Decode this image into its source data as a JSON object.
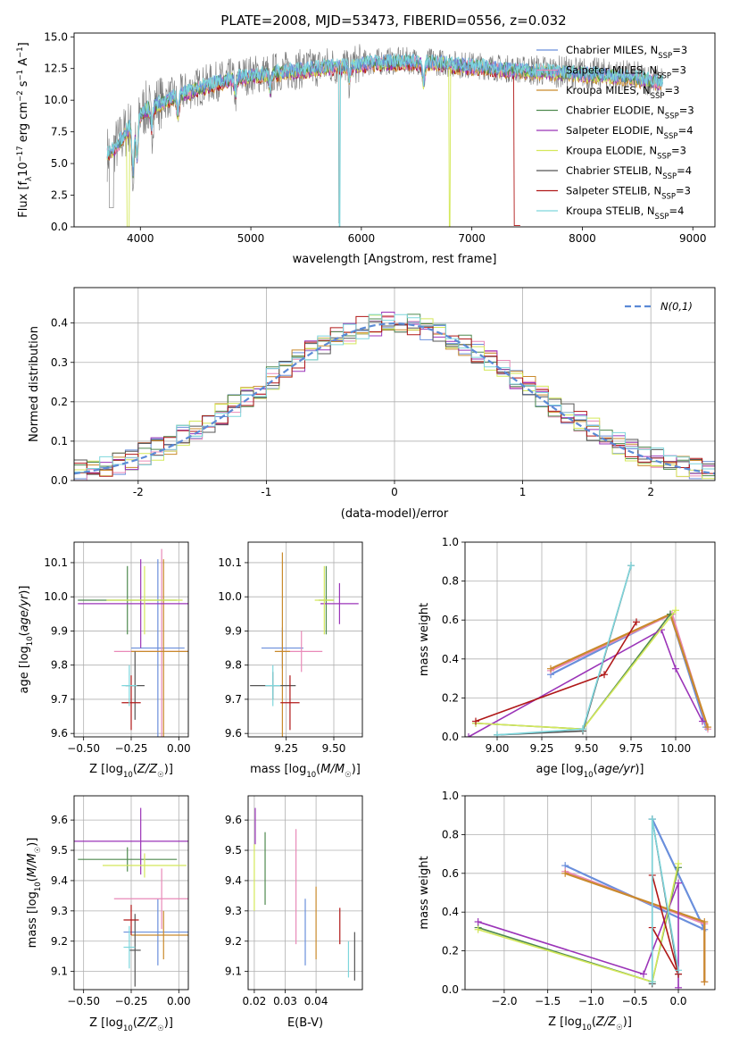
{
  "title": "PLATE=2008, MJD=53473, FIBERID=0556, z=0.032",
  "series_colors": [
    "#6a8fdc",
    "#e98ab8",
    "#c98a2c",
    "#4f8a4f",
    "#9b34b8",
    "#d4e85a",
    "#555555",
    "#b01818",
    "#7ed6dc"
  ],
  "chart_data": [
    {
      "type": "line",
      "id": "spectrum",
      "xlabel": "wavelength [Angstrom, rest frame]",
      "ylabel": "Flux [f_λ 10^-17 erg cm^-2 s^-1 A^-1]",
      "xlim": [
        3400,
        9200
      ],
      "ylim": [
        0,
        15.3
      ],
      "xticks": [
        4000,
        5000,
        6000,
        7000,
        8000,
        9000
      ],
      "yticks": [
        0.0,
        2.5,
        5.0,
        7.5,
        10.0,
        12.5,
        15.0
      ],
      "grid": false,
      "legend_position": "right",
      "envelope": {
        "x": [
          3700,
          3800,
          3900,
          4000,
          4100,
          4300,
          4500,
          4700,
          4900,
          5100,
          5300,
          5500,
          5700,
          5900,
          6100,
          6300,
          6500,
          6700,
          6900,
          7100,
          7300,
          7500,
          7700,
          7900,
          8100,
          8300,
          8500,
          8700
        ],
        "y": [
          5.8,
          6.6,
          8.0,
          9.0,
          9.6,
          10.3,
          11.0,
          11.5,
          11.9,
          12.1,
          12.3,
          12.5,
          12.7,
          12.8,
          13.0,
          13.1,
          13.1,
          13.0,
          12.8,
          12.7,
          12.5,
          12.4,
          12.3,
          12.2,
          12.1,
          12.0,
          11.8,
          11.5
        ]
      },
      "series": [
        {
          "name": "Chabrier MILES",
          "nssp": "3"
        },
        {
          "name": "Salpeter MILES",
          "nssp": "3"
        },
        {
          "name": "Kroupa MILES",
          "nssp": "3"
        },
        {
          "name": "Chabrier ELODIE",
          "nssp": "3"
        },
        {
          "name": "Salpeter ELODIE",
          "nssp": "4"
        },
        {
          "name": "Kroupa ELODIE",
          "nssp": "3"
        },
        {
          "name": "Chabrier STELIB",
          "nssp": "4"
        },
        {
          "name": "Salpeter STELIB",
          "nssp": "3"
        },
        {
          "name": "Kroupa STELIB",
          "nssp": "4"
        }
      ]
    },
    {
      "type": "line",
      "id": "residuals",
      "xlabel": "(data-model)/error",
      "ylabel": "Normed distribution",
      "xlim": [
        -2.5,
        2.5
      ],
      "ylim": [
        0,
        0.49
      ],
      "xticks": [
        -2,
        -1,
        0,
        1,
        2
      ],
      "yticks": [
        0.0,
        0.1,
        0.2,
        0.3,
        0.4
      ],
      "grid": true,
      "legend": "N(0,1)",
      "bin_width": 0.1
    },
    {
      "type": "scatter",
      "id": "age_vs_Z",
      "xlabel": "Z [log10(Z/Z☉)]",
      "ylabel": "age [log10(age/yr)]",
      "xlim": [
        -0.55,
        0.05
      ],
      "ylim": [
        9.59,
        10.16
      ],
      "xticks": [
        -0.5,
        -0.25,
        0.0
      ],
      "xticklabels": [
        "−0.50",
        "−0.25",
        "0.00"
      ],
      "yticks": [
        9.6,
        9.7,
        9.8,
        9.9,
        10.0,
        10.1
      ],
      "grid": true,
      "points": [
        {
          "x": -0.11,
          "y": 9.85,
          "xerr": 0.14,
          "yerr": 0.26
        },
        {
          "x": -0.09,
          "y": 9.84,
          "xerr": 0.25,
          "yerr": 0.3
        },
        {
          "x": -0.08,
          "y": 9.84,
          "xerr": 0.17,
          "yerr": 0.27
        },
        {
          "x": -0.27,
          "y": 9.99,
          "xerr": 0.26,
          "yerr": 0.1
        },
        {
          "x": -0.2,
          "y": 9.98,
          "xerr": 0.33,
          "yerr": 0.13
        },
        {
          "x": -0.18,
          "y": 9.99,
          "xerr": 0.2,
          "yerr": 0.1
        },
        {
          "x": -0.23,
          "y": 9.74,
          "xerr": 0.05,
          "yerr": 0.1
        },
        {
          "x": -0.25,
          "y": 9.69,
          "xerr": 0.05,
          "yerr": 0.08
        },
        {
          "x": -0.26,
          "y": 9.74,
          "xerr": 0.04,
          "yerr": 0.06
        }
      ]
    },
    {
      "type": "scatter",
      "id": "age_vs_mass",
      "xlabel": "mass [log10(M/M☉)]",
      "ylabel": "",
      "xlim": [
        9.05,
        9.65
      ],
      "ylim": [
        9.59,
        10.16
      ],
      "xticks": [
        9.25,
        9.5
      ],
      "xticklabels": [
        "9.25",
        "9.50"
      ],
      "yticks": [
        9.6,
        9.7,
        9.8,
        9.9,
        10.0,
        10.1
      ],
      "grid": true,
      "points": [
        {
          "x": 9.23,
          "y": 9.85,
          "xerr": 0.11,
          "yerr": 0.06
        },
        {
          "x": 9.33,
          "y": 9.84,
          "xerr": 0.11,
          "yerr": 0.06
        },
        {
          "x": 9.23,
          "y": 9.84,
          "xerr": 0.04,
          "yerr": 0.29
        },
        {
          "x": 9.46,
          "y": 9.99,
          "xerr": 0.04,
          "yerr": 0.1
        },
        {
          "x": 9.53,
          "y": 9.98,
          "xerr": 0.1,
          "yerr": 0.06
        },
        {
          "x": 9.45,
          "y": 9.99,
          "xerr": 0.05,
          "yerr": 0.1
        },
        {
          "x": 9.18,
          "y": 9.74,
          "xerr": 0.12,
          "yerr": 0.04
        },
        {
          "x": 9.27,
          "y": 9.69,
          "xerr": 0.05,
          "yerr": 0.08
        },
        {
          "x": 9.18,
          "y": 9.74,
          "xerr": 0.04,
          "yerr": 0.06
        }
      ]
    },
    {
      "type": "line",
      "id": "massweight_vs_age",
      "xlabel": "age [log10(age/yr)]",
      "ylabel": "mass weight",
      "xlim": [
        8.82,
        10.22
      ],
      "ylim": [
        0,
        1.0
      ],
      "xticks": [
        9.0,
        9.25,
        9.5,
        9.75,
        10.0
      ],
      "xticklabels": [
        "9.00",
        "9.25",
        "9.50",
        "9.75",
        "10.00"
      ],
      "yticks": [
        0.0,
        0.2,
        0.4,
        0.6,
        0.8,
        1.0
      ],
      "grid": true,
      "series": [
        {
          "x": [
            9.3,
            9.97,
            10.17
          ],
          "y": [
            0.32,
            0.63,
            0.05
          ]
        },
        {
          "x": [
            9.3,
            9.98,
            10.18
          ],
          "y": [
            0.34,
            0.63,
            0.04
          ]
        },
        {
          "x": [
            9.3,
            9.97,
            10.18
          ],
          "y": [
            0.35,
            0.63,
            0.05
          ]
        },
        {
          "x": [
            8.88,
            9.48,
            9.97
          ],
          "y": [
            0.07,
            0.04,
            0.63
          ]
        },
        {
          "x": [
            8.84,
            9.92,
            10.0,
            10.15
          ],
          "y": [
            0.0,
            0.55,
            0.35,
            0.08
          ]
        },
        {
          "x": [
            8.88,
            9.48,
            10.0
          ],
          "y": [
            0.07,
            0.04,
            0.65
          ]
        },
        {
          "x": [
            9.0,
            9.48,
            9.75
          ],
          "y": [
            0.01,
            0.03,
            0.88
          ]
        },
        {
          "x": [
            8.88,
            9.6,
            9.78
          ],
          "y": [
            0.08,
            0.32,
            0.59
          ]
        },
        {
          "x": [
            9.0,
            9.48,
            9.75
          ],
          "y": [
            0.01,
            0.04,
            0.88
          ]
        }
      ]
    },
    {
      "type": "scatter",
      "id": "mass_vs_Z",
      "xlabel": "Z [log10(Z/Z☉)]",
      "ylabel": "mass [log10(M/M☉)]",
      "xlim": [
        -0.55,
        0.05
      ],
      "ylim": [
        9.04,
        9.68
      ],
      "xticks": [
        -0.5,
        -0.25,
        0.0
      ],
      "xticklabels": [
        "−0.50",
        "−0.25",
        "0.00"
      ],
      "yticks": [
        9.1,
        9.2,
        9.3,
        9.4,
        9.5,
        9.6
      ],
      "grid": true,
      "points": [
        {
          "x": -0.11,
          "y": 9.23,
          "xerr": 0.18,
          "yerr": 0.11
        },
        {
          "x": -0.09,
          "y": 9.34,
          "xerr": 0.25,
          "yerr": 0.1
        },
        {
          "x": -0.08,
          "y": 9.22,
          "xerr": 0.17,
          "yerr": 0.08
        },
        {
          "x": -0.27,
          "y": 9.47,
          "xerr": 0.26,
          "yerr": 0.04
        },
        {
          "x": -0.2,
          "y": 9.53,
          "xerr": 0.35,
          "yerr": 0.11
        },
        {
          "x": -0.18,
          "y": 9.45,
          "xerr": 0.22,
          "yerr": 0.04
        },
        {
          "x": -0.23,
          "y": 9.17,
          "xerr": 0.03,
          "yerr": 0.12
        },
        {
          "x": -0.25,
          "y": 9.27,
          "xerr": 0.04,
          "yerr": 0.05
        },
        {
          "x": -0.26,
          "y": 9.18,
          "xerr": 0.03,
          "yerr": 0.07
        }
      ]
    },
    {
      "type": "scatter",
      "id": "mass_vs_ebv",
      "xlabel": "E(B-V)",
      "ylabel": "",
      "xlim": [
        0.018,
        0.055
      ],
      "ylim": [
        9.04,
        9.68
      ],
      "xticks": [
        0.02,
        0.03,
        0.04
      ],
      "xticklabels": [
        "0.02",
        "0.03",
        "0.04"
      ],
      "yticks": [
        9.1,
        9.2,
        9.3,
        9.4,
        9.5,
        9.6
      ],
      "grid": true,
      "points": [
        {
          "x": 0.0365,
          "y": 9.23,
          "xerr": 0.0,
          "yerr": 0.11
        },
        {
          "x": 0.0335,
          "y": 9.38,
          "xerr": 0.0,
          "yerr": 0.19
        },
        {
          "x": 0.04,
          "y": 9.26,
          "xerr": 0.0,
          "yerr": 0.12
        },
        {
          "x": 0.0235,
          "y": 9.44,
          "xerr": 0.0,
          "yerr": 0.12
        },
        {
          "x": 0.0203,
          "y": 9.58,
          "xerr": 0.0,
          "yerr": 0.06
        },
        {
          "x": 0.02,
          "y": 9.41,
          "xerr": 0.0,
          "yerr": 0.11
        },
        {
          "x": 0.0525,
          "y": 9.15,
          "xerr": 0.0,
          "yerr": 0.08
        },
        {
          "x": 0.0477,
          "y": 9.25,
          "xerr": 0.0,
          "yerr": 0.06
        },
        {
          "x": 0.0505,
          "y": 9.14,
          "xerr": 0.0,
          "yerr": 0.06
        }
      ]
    },
    {
      "type": "line",
      "id": "massweight_vs_Z",
      "xlabel": "Z [log10(Z/Z☉)]",
      "ylabel": "mass weight",
      "xlim": [
        -2.45,
        0.42
      ],
      "ylim": [
        0,
        1.0
      ],
      "xticks": [
        -2.0,
        -1.5,
        -1.0,
        -0.5,
        0.0
      ],
      "xticklabels": [
        "−2.0",
        "−1.5",
        "−1.0",
        "−0.5",
        "0.0"
      ],
      "yticks": [
        0.0,
        0.2,
        0.4,
        0.6,
        0.8,
        1.0
      ],
      "grid": true,
      "series": [
        {
          "x": [
            -1.3,
            0.3,
            -0.3
          ],
          "y": [
            0.64,
            0.31,
            0.88
          ]
        },
        {
          "x": [
            -1.3,
            0.3,
            0.3
          ],
          "y": [
            0.61,
            0.34,
            0.04
          ]
        },
        {
          "x": [
            -1.3,
            0.3,
            0.3
          ],
          "y": [
            0.6,
            0.35,
            0.04
          ]
        },
        {
          "x": [
            -2.3,
            -0.3,
            0.0
          ],
          "y": [
            0.32,
            0.04,
            0.63
          ]
        },
        {
          "x": [
            -2.3,
            -0.4,
            0.0,
            0.0
          ],
          "y": [
            0.35,
            0.08,
            0.55,
            0.01
          ]
        },
        {
          "x": [
            -2.3,
            -0.3,
            0.0
          ],
          "y": [
            0.31,
            0.04,
            0.65
          ]
        },
        {
          "x": [
            -0.3,
            -0.3,
            0.0
          ],
          "y": [
            0.03,
            0.88,
            0.08
          ]
        },
        {
          "x": [
            -0.3,
            0.0,
            -0.3
          ],
          "y": [
            0.32,
            0.08,
            0.59
          ]
        },
        {
          "x": [
            -0.3,
            -0.3,
            0.0
          ],
          "y": [
            0.04,
            0.88,
            0.1
          ]
        }
      ]
    }
  ]
}
